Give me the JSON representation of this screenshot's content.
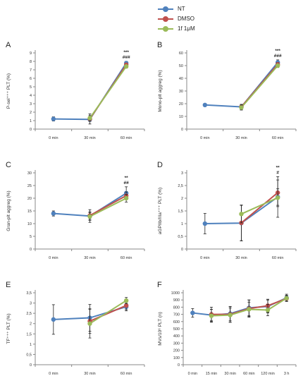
{
  "legend": [
    {
      "name": "NT",
      "color": "#4f81bd"
    },
    {
      "name": "DMSO",
      "color": "#c0504d"
    },
    {
      "name": "1f 1μM",
      "color": "#9bbb59"
    }
  ],
  "chart_data": [
    {
      "type": "line",
      "panel": "A",
      "ylabel": "P-sel⁺⁺⁺ PLT (%)",
      "categories": [
        "0 min",
        "30 min",
        "60 min"
      ],
      "ylim": [
        0,
        9
      ],
      "yticks": [
        0,
        1,
        2,
        3,
        4,
        5,
        6,
        7,
        8,
        9
      ],
      "series": [
        {
          "name": "NT",
          "values": [
            1.2,
            1.15,
            7.8
          ],
          "err": [
            0.25,
            0.25,
            0.2
          ]
        },
        {
          "name": "DMSO",
          "values": [
            null,
            1.2,
            7.6
          ],
          "err": [
            null,
            0.6,
            0.2
          ]
        },
        {
          "name": "1f 1μM",
          "values": [
            null,
            1.3,
            7.4
          ],
          "err": [
            null,
            0.3,
            0.2
          ]
        }
      ],
      "annotations": [
        "***",
        "###"
      ]
    },
    {
      "type": "line",
      "panel": "B",
      "ylabel": "Mono-plt aggreg (%)",
      "categories": [
        "0 min",
        "30 min",
        "60 min"
      ],
      "ylim": [
        0,
        60
      ],
      "yticks": [
        0,
        10,
        20,
        30,
        40,
        50,
        60
      ],
      "series": [
        {
          "name": "NT",
          "values": [
            19,
            17.5,
            52.5
          ],
          "err": [
            0.8,
            2,
            2
          ]
        },
        {
          "name": "DMSO",
          "values": [
            null,
            17.5,
            51
          ],
          "err": [
            null,
            1.5,
            1.5
          ]
        },
        {
          "name": "1f 1μM",
          "values": [
            null,
            17,
            50
          ],
          "err": [
            null,
            2,
            1.5
          ]
        }
      ],
      "annotations": [
        "***",
        "###"
      ]
    },
    {
      "type": "line",
      "panel": "C",
      "ylabel": "Gran-plt aggreg (%)",
      "categories": [
        "0 min",
        "30 min",
        "60 min"
      ],
      "ylim": [
        0,
        30
      ],
      "yticks": [
        0,
        5,
        10,
        15,
        20,
        25,
        30
      ],
      "series": [
        {
          "name": "NT",
          "values": [
            14,
            13,
            22
          ],
          "err": [
            1,
            2.5,
            2.5
          ]
        },
        {
          "name": "DMSO",
          "values": [
            null,
            13.2,
            21
          ],
          "err": [
            null,
            1.5,
            1.5
          ]
        },
        {
          "name": "1f 1μM",
          "values": [
            null,
            12.8,
            20
          ],
          "err": [
            null,
            1.5,
            1.5
          ]
        }
      ],
      "annotations": [
        "**",
        "##"
      ]
    },
    {
      "type": "line",
      "panel": "D",
      "ylabel": "aGPIIb/IIIa⁺⁺⁺ PLT (%)",
      "categories": [
        "0 min",
        "30 min",
        "60 min"
      ],
      "ylim": [
        0,
        3
      ],
      "yticks": [
        0,
        0.5,
        1,
        1.5,
        2,
        2.5,
        3
      ],
      "series": [
        {
          "name": "NT",
          "values": [
            1.0,
            1.02,
            2.05
          ],
          "err": [
            0.4,
            0.7,
            0.8
          ]
        },
        {
          "name": "DMSO",
          "values": [
            null,
            1.03,
            2.22
          ],
          "err": [
            null,
            0.7,
            0.5
          ]
        },
        {
          "name": "1f 1μM",
          "values": [
            null,
            1.38,
            2.02
          ],
          "err": [
            null,
            0.35,
            0.35
          ]
        }
      ],
      "annotations": [
        "**",
        "#"
      ]
    },
    {
      "type": "line",
      "panel": "E",
      "ylabel": "TF⁺⁺⁺ PLT (%)",
      "categories": [
        "0 min",
        "30 min",
        "60 min"
      ],
      "ylim": [
        0,
        3.5
      ],
      "yticks": [
        0,
        0.5,
        1,
        1.5,
        2,
        2.5,
        3,
        3.5
      ],
      "series": [
        {
          "name": "NT",
          "values": [
            2.2,
            2.28,
            2.82
          ],
          "err": [
            0.72,
            0.65,
            0.2
          ]
        },
        {
          "name": "DMSO",
          "values": [
            null,
            2.12,
            2.88
          ],
          "err": [
            null,
            0.6,
            0.2
          ]
        },
        {
          "name": "1f 1μM",
          "values": [
            null,
            2.0,
            3.12
          ],
          "err": [
            null,
            0.7,
            0.15
          ]
        }
      ],
      "annotations": []
    },
    {
      "type": "line",
      "panel": "F",
      "ylabel": "MVs/10⁶ PLT (n)",
      "categories": [
        "0 min",
        "15 min",
        "30 min",
        "60 min",
        "120 min",
        "3 h"
      ],
      "ylim": [
        0,
        1000
      ],
      "yticks": [
        0,
        100,
        200,
        300,
        400,
        500,
        600,
        700,
        800,
        900,
        1000
      ],
      "series": [
        {
          "name": "NT",
          "values": [
            720,
            690,
            710,
            790,
            810,
            930
          ],
          "err": [
            60,
            80,
            100,
            110,
            90,
            50
          ]
        },
        {
          "name": "DMSO",
          "values": [
            null,
            700,
            700,
            780,
            820,
            920
          ],
          "err": [
            null,
            100,
            110,
            120,
            90,
            40
          ]
        },
        {
          "name": "1f 1μM",
          "values": [
            null,
            680,
            690,
            770,
            760,
            925
          ],
          "err": [
            null,
            90,
            100,
            100,
            80,
            40
          ]
        }
      ],
      "annotations": []
    }
  ]
}
